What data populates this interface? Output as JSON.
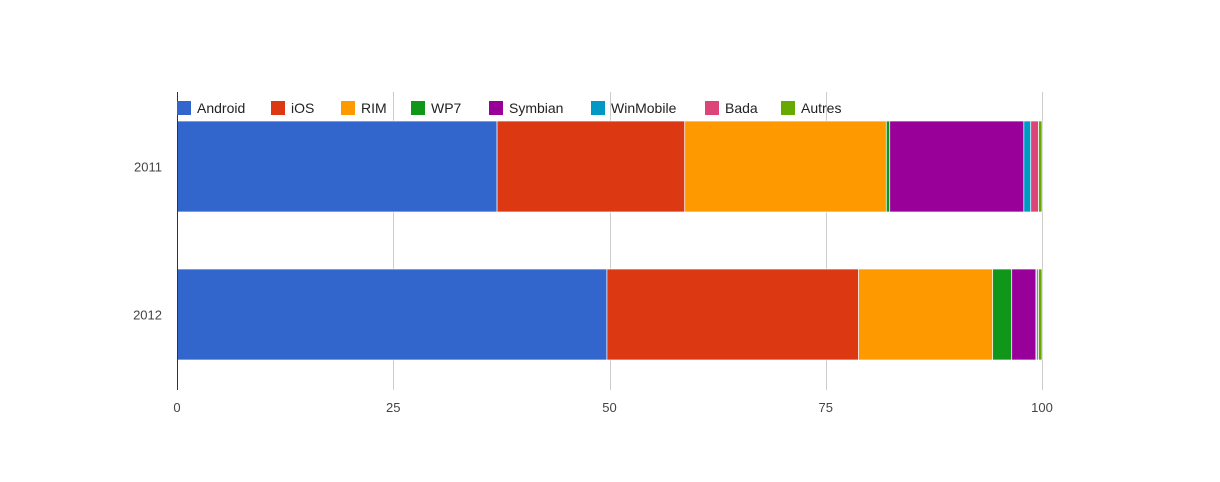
{
  "chart_data": {
    "type": "bar",
    "orientation": "horizontal",
    "stacked": true,
    "categories": [
      "2011",
      "2012"
    ],
    "series": [
      {
        "name": "Android",
        "color": "#3366cc",
        "values": [
          37.0,
          49.7
        ]
      },
      {
        "name": "iOS",
        "color": "#dc3912",
        "values": [
          21.7,
          29.1
        ]
      },
      {
        "name": "RIM",
        "color": "#ff9900",
        "values": [
          23.3,
          15.5
        ]
      },
      {
        "name": "WP7",
        "color": "#109618",
        "values": [
          0.4,
          2.2
        ]
      },
      {
        "name": "Symbian",
        "color": "#990099",
        "values": [
          15.5,
          2.8
        ]
      },
      {
        "name": "WinMobile",
        "color": "#0099c6",
        "values": [
          0.8,
          0.1
        ]
      },
      {
        "name": "Bada",
        "color": "#dd4477",
        "values": [
          0.9,
          0.2
        ]
      },
      {
        "name": "Autres",
        "color": "#66aa00",
        "values": [
          0.4,
          0.4
        ]
      }
    ],
    "x_ticks": [
      "0",
      "25",
      "50",
      "75",
      "100"
    ],
    "xlim": [
      0,
      100
    ],
    "grid": true,
    "legend_position": "top",
    "title": "",
    "xlabel": "",
    "ylabel": ""
  }
}
